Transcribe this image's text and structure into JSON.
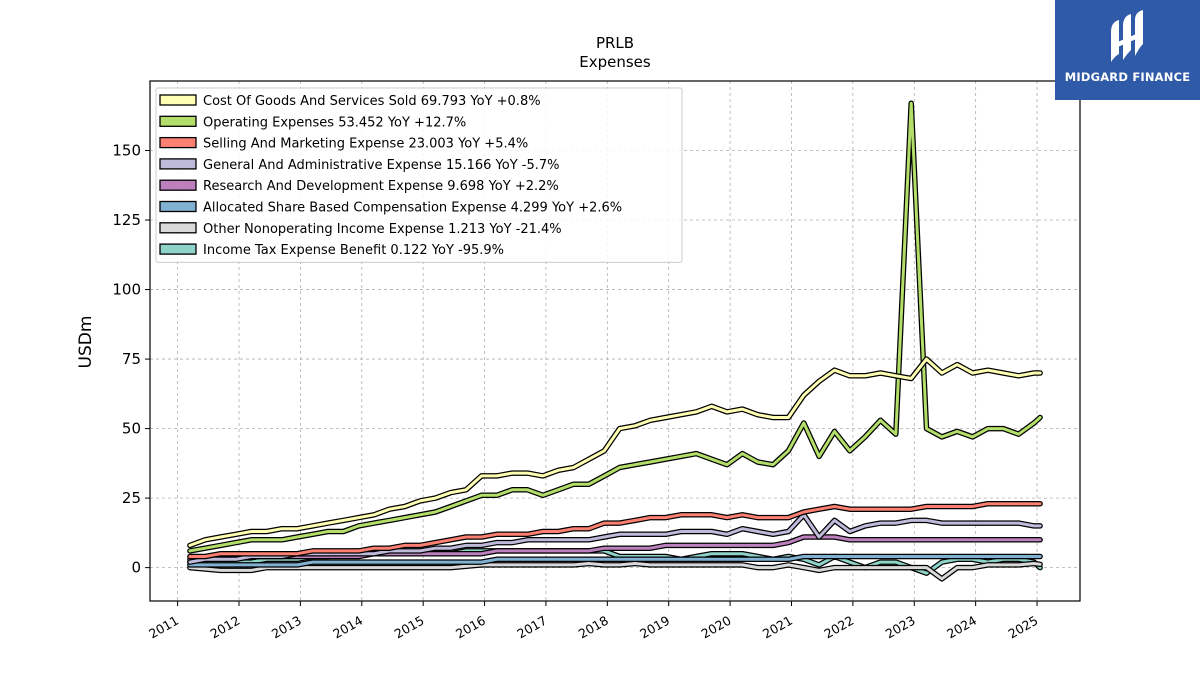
{
  "chart_data": {
    "type": "line",
    "title": "PRLB",
    "subtitle": "Expenses",
    "ylabel": "USDm",
    "xlabel": "",
    "xlim": [
      2010.55,
      2025.7
    ],
    "ylim": [
      -12,
      175
    ],
    "yticks": [
      0,
      25,
      50,
      75,
      100,
      125,
      150
    ],
    "xticks": [
      "2011",
      "2012",
      "2013",
      "2014",
      "2015",
      "2016",
      "2017",
      "2018",
      "2019",
      "2020",
      "2021",
      "2022",
      "2023",
      "2024",
      "2025"
    ],
    "grid": true,
    "legend_position": "top-left",
    "x": [
      2011.2,
      2011.45,
      2011.7,
      2011.95,
      2012.2,
      2012.45,
      2012.7,
      2012.95,
      2013.2,
      2013.45,
      2013.7,
      2013.95,
      2014.2,
      2014.45,
      2014.7,
      2014.95,
      2015.2,
      2015.45,
      2015.7,
      2015.95,
      2016.2,
      2016.45,
      2016.7,
      2016.95,
      2017.2,
      2017.45,
      2017.7,
      2017.95,
      2018.2,
      2018.45,
      2018.7,
      2018.95,
      2019.2,
      2019.45,
      2019.7,
      2019.95,
      2020.2,
      2020.45,
      2020.7,
      2020.95,
      2021.2,
      2021.45,
      2021.7,
      2021.95,
      2022.2,
      2022.45,
      2022.7,
      2022.95,
      2023.2,
      2023.45,
      2023.7,
      2023.95,
      2024.2,
      2024.45,
      2024.7,
      2024.95,
      2025.05
    ],
    "series": [
      {
        "name": "Cost Of Goods And Services Sold",
        "label": "Cost Of Goods And Services Sold  69.793 YoY +0.8%",
        "color": "#ffffb3",
        "values": [
          8,
          10,
          11,
          12,
          13,
          13,
          14,
          14,
          15,
          16,
          17,
          18,
          19,
          21,
          22,
          24,
          25,
          27,
          28,
          33,
          33,
          34,
          34,
          33,
          35,
          36,
          39,
          42,
          50,
          51,
          53,
          54,
          55,
          56,
          58,
          56,
          57,
          55,
          54,
          54,
          62,
          67,
          71,
          69,
          69,
          70,
          69,
          68,
          75,
          70,
          73,
          70,
          71,
          70,
          69,
          70,
          70
        ]
      },
      {
        "name": "Operating Expenses",
        "label": "Operating Expenses  53.452 YoY +12.7%",
        "color": "#b3de69",
        "values": [
          6,
          7,
          8,
          9,
          10,
          10,
          10,
          11,
          12,
          13,
          13,
          15,
          16,
          17,
          18,
          19,
          20,
          22,
          24,
          26,
          26,
          28,
          28,
          26,
          28,
          30,
          30,
          33,
          36,
          37,
          38,
          39,
          40,
          41,
          39,
          37,
          41,
          38,
          37,
          42,
          52,
          40,
          49,
          42,
          47,
          53,
          48,
          167,
          50,
          47,
          49,
          47,
          50,
          50,
          48,
          52,
          54
        ]
      },
      {
        "name": "Selling And Marketing Expense",
        "label": "Selling And Marketing Expense  23.003 YoY +5.4%",
        "color": "#fb8072",
        "values": [
          4,
          4,
          5,
          5,
          5,
          5,
          5,
          5,
          6,
          6,
          6,
          6,
          7,
          7,
          8,
          8,
          9,
          10,
          11,
          11,
          12,
          12,
          12,
          13,
          13,
          14,
          14,
          16,
          16,
          17,
          18,
          18,
          19,
          19,
          19,
          18,
          19,
          18,
          18,
          18,
          20,
          21,
          22,
          21,
          21,
          21,
          21,
          21,
          22,
          22,
          22,
          22,
          23,
          23,
          23,
          23,
          23
        ]
      },
      {
        "name": "General And Administrative Expense",
        "label": "General And Administrative Expense  15.166 YoY -5.7%",
        "color": "#bebada",
        "values": [
          2,
          3,
          3,
          3,
          4,
          4,
          4,
          5,
          5,
          5,
          5,
          5,
          5,
          6,
          6,
          6,
          7,
          7,
          8,
          8,
          9,
          9,
          10,
          10,
          10,
          10,
          10,
          11,
          12,
          12,
          12,
          12,
          13,
          13,
          13,
          12,
          14,
          13,
          12,
          13,
          19,
          11,
          17,
          13,
          15,
          16,
          16,
          17,
          17,
          16,
          16,
          16,
          16,
          16,
          16,
          15,
          15
        ]
      },
      {
        "name": "Research And Development Expense",
        "label": "Research And Development Expense  9.698 YoY +2.2%",
        "color": "#bc80bd",
        "values": [
          3,
          3,
          3,
          4,
          4,
          4,
          4,
          4,
          4,
          4,
          4,
          4,
          5,
          5,
          5,
          5,
          5,
          5,
          5,
          5,
          6,
          6,
          6,
          6,
          6,
          6,
          6,
          7,
          7,
          7,
          7,
          8,
          8,
          8,
          8,
          8,
          8,
          8,
          8,
          9,
          11,
          11,
          11,
          10,
          10,
          10,
          10,
          10,
          10,
          10,
          10,
          10,
          10,
          10,
          10,
          10,
          10
        ]
      },
      {
        "name": "Allocated Share Based Compensation Expense",
        "label": "Allocated Share Based Compensation Expense  4.299 YoY +2.6%",
        "color": "#80b1d3",
        "values": [
          1,
          1,
          1,
          1,
          1,
          1,
          1,
          1,
          2,
          2,
          2,
          2,
          2,
          2,
          2,
          2,
          2,
          2,
          2,
          2,
          3,
          3,
          3,
          3,
          3,
          3,
          3,
          3,
          3,
          3,
          3,
          3,
          3,
          3,
          3,
          3,
          3,
          3,
          3,
          3,
          4,
          4,
          4,
          4,
          4,
          4,
          4,
          4,
          4,
          4,
          4,
          4,
          4,
          4,
          4,
          4,
          4
        ]
      },
      {
        "name": "Other Nonoperating Income Expense",
        "label": "Other Nonoperating Income Expense  1.213 YoY -21.4%",
        "color": "#d9d9d9",
        "values": [
          0,
          -0.5,
          -1,
          -1,
          -1,
          0,
          0,
          0,
          0,
          0,
          0,
          0,
          0,
          0,
          0,
          0,
          0,
          0,
          0.5,
          1,
          1,
          1,
          1,
          1,
          1,
          1,
          1.5,
          1,
          1,
          1.5,
          1,
          1,
          1,
          1,
          1,
          1,
          1,
          0,
          0,
          1,
          0,
          -1,
          0,
          0,
          0,
          0,
          0,
          0,
          0,
          -4,
          0,
          0,
          1,
          1,
          1,
          1.5,
          1.2
        ]
      },
      {
        "name": "Income Tax Expense Benefit",
        "label": "Income Tax Expense Benefit  0.122 YoY -95.9%",
        "color": "#8dd3c7",
        "values": [
          2,
          2,
          2,
          2,
          2,
          3,
          3,
          3,
          4,
          4,
          5,
          5,
          5,
          5,
          6,
          5,
          5,
          5,
          6,
          6,
          6,
          6,
          6,
          6,
          6,
          6,
          6,
          6,
          4,
          4,
          4,
          4,
          3,
          4,
          5,
          5,
          5,
          4,
          3,
          4,
          3,
          1,
          4,
          2,
          0,
          2,
          2,
          0,
          -2,
          2,
          3,
          3,
          2,
          3,
          3,
          2,
          0
        ]
      }
    ]
  },
  "brand": {
    "name": "MIDGARD FINANCE",
    "bg_color": "#2f5aa8"
  }
}
